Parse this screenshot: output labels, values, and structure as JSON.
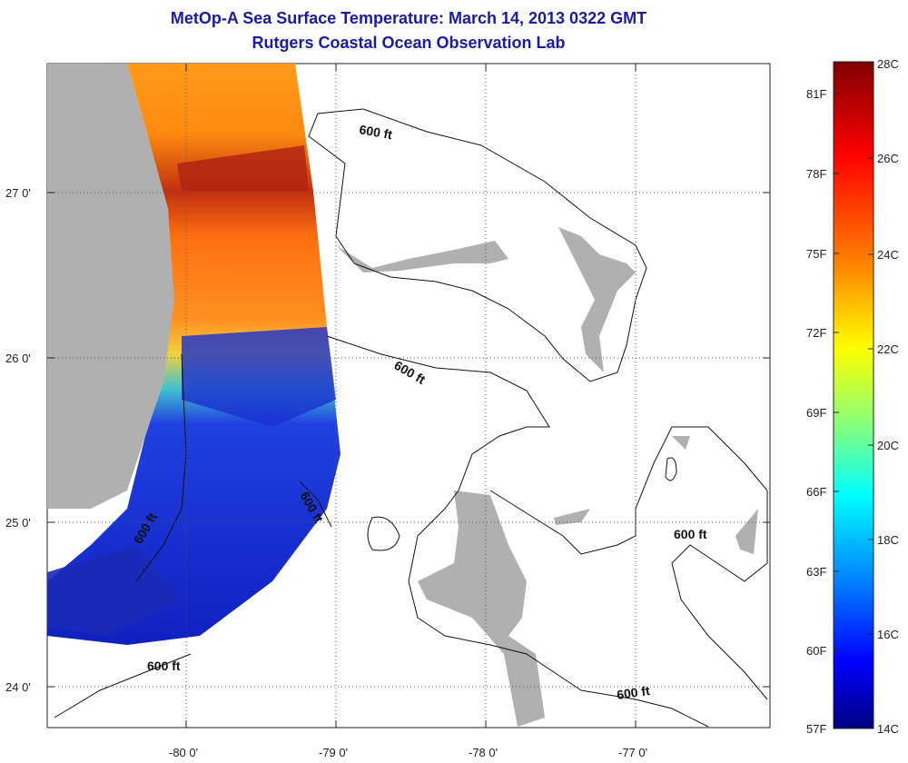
{
  "title": "MetOp-A Sea Surface Temperature:  March 14, 2013 0322 GMT",
  "subtitle": "Rutgers Coastal Ocean Observation Lab",
  "map": {
    "lon_ticks": [
      "-80 0'",
      "-79 0'",
      "-78 0'",
      "-77 0'"
    ],
    "lat_ticks": [
      "27 0'",
      "26 0'",
      "25 0'",
      "24 0'"
    ],
    "contour_label": "600 ft",
    "colors": {
      "land": "#b0b0b0",
      "no_data": "#ffffff",
      "grid": "#555555"
    }
  },
  "colorbar": {
    "celsius_labels": [
      "28C",
      "26C",
      "24C",
      "22C",
      "20C",
      "18C",
      "16C",
      "14C"
    ],
    "fahrenheit_labels": [
      "81F",
      "78F",
      "75F",
      "72F",
      "69F",
      "66F",
      "63F",
      "60F",
      "57F"
    ],
    "colors": [
      "#800000",
      "#ff0000",
      "#ff8000",
      "#ffff00",
      "#80ff80",
      "#00ffff",
      "#0080ff",
      "#0000ff",
      "#000080"
    ]
  }
}
